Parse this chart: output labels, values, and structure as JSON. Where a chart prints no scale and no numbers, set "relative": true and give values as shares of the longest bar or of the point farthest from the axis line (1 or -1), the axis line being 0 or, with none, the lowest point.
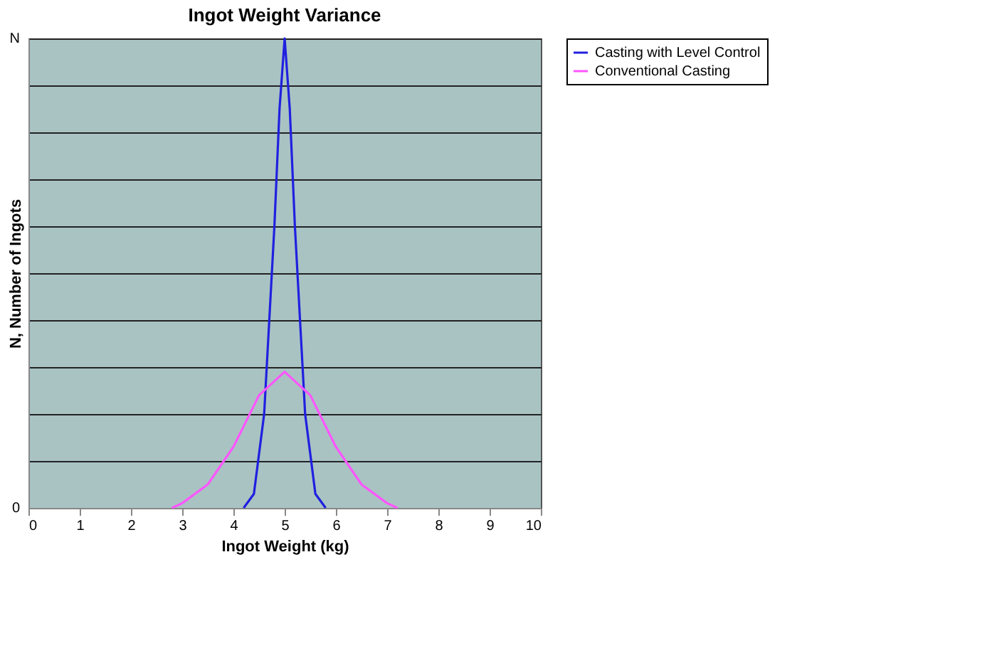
{
  "chart_data": {
    "type": "line",
    "title": "Ingot Weight Variance",
    "xlabel": "Ingot Weight (kg)",
    "ylabel": "N, Number of Ingots",
    "relative": true,
    "xlim": [
      0,
      10
    ],
    "xticks": [
      0,
      1,
      2,
      3,
      4,
      5,
      6,
      7,
      8,
      9,
      10
    ],
    "grid": "y",
    "legend": "right",
    "marker": "none",
    "annotations": [
      "N",
      "0"
    ],
    "series": [
      {
        "name": "Casting with Level Control",
        "color": "#2020e0",
        "x": [
          4.2,
          4.4,
          4.6,
          4.8,
          4.9,
          5.0,
          5.1,
          5.2,
          5.4,
          5.6,
          5.8
        ],
        "values": [
          0,
          0.03,
          0.2,
          0.6,
          0.85,
          1,
          0.85,
          0.6,
          0.2,
          0.03,
          0
        ]
      },
      {
        "name": "Conventional Casting",
        "color": "#ff55ff",
        "x": [
          2.8,
          3.0,
          3.5,
          4.0,
          4.5,
          5.0,
          5.5,
          6.0,
          6.5,
          7.0,
          7.2
        ],
        "values": [
          0,
          0.01,
          0.05,
          0.13,
          0.24,
          0.29,
          0.24,
          0.13,
          0.05,
          0.01,
          0
        ]
      }
    ]
  }
}
